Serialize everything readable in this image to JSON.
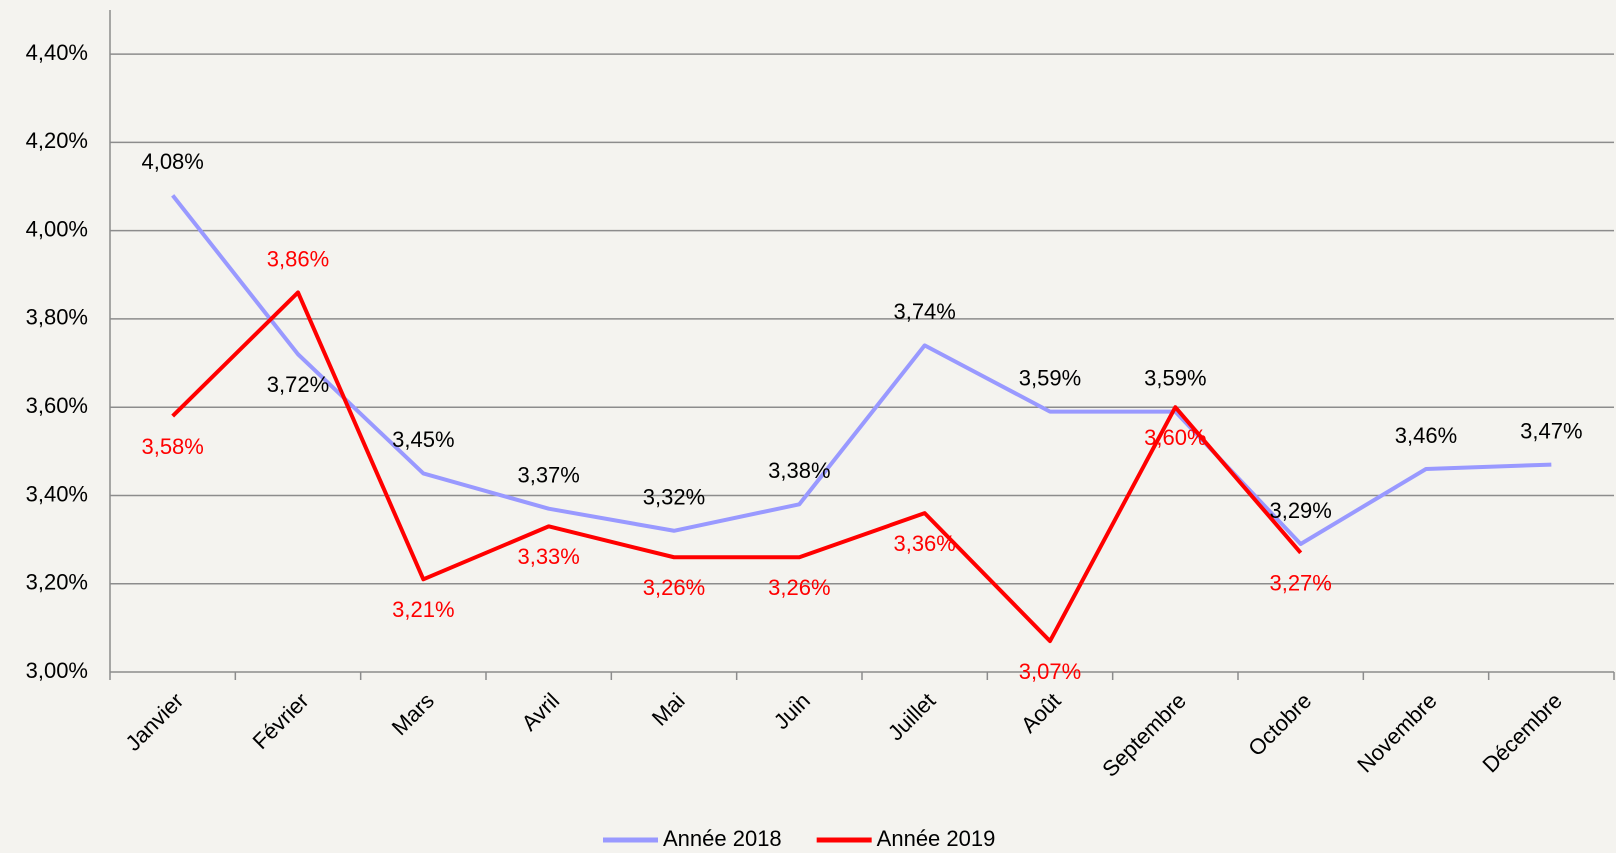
{
  "chart_data": {
    "type": "line",
    "categories": [
      "Janvier",
      "Février",
      "Mars",
      "Avril",
      "Mai",
      "Juin",
      "Juillet",
      "Août",
      "Septembre",
      "Octobre",
      "Novembre",
      "Décembre"
    ],
    "series": [
      {
        "name": "Année 2018",
        "color": "#9999ff",
        "values": [
          4.08,
          3.72,
          3.45,
          3.37,
          3.32,
          3.38,
          3.74,
          3.59,
          3.59,
          3.29,
          3.46,
          3.47
        ],
        "value_labels": [
          "4,08%",
          "3,72%",
          "3,45%",
          "3,37%",
          "3,32%",
          "3,38%",
          "3,74%",
          "3,59%",
          "3,59%",
          "3,29%",
          "3,46%",
          "3,47%"
        ]
      },
      {
        "name": "Année 2019",
        "color": "#ff0000",
        "values": [
          3.58,
          3.86,
          3.21,
          3.33,
          3.26,
          3.26,
          3.36,
          3.07,
          3.6,
          3.27,
          null,
          null
        ],
        "value_labels": [
          "3,58%",
          "3,86%",
          "3,21%",
          "3,33%",
          "3,26%",
          "3,26%",
          "3,36%",
          "3,07%",
          "3,60%",
          "3,27%",
          null,
          null
        ]
      }
    ],
    "ylim": [
      3.0,
      4.5
    ],
    "yticks": [
      {
        "value": 3.0,
        "label": "3,00%"
      },
      {
        "value": 3.2,
        "label": "3,20%"
      },
      {
        "value": 3.4,
        "label": "3,40%"
      },
      {
        "value": 3.6,
        "label": "3,60%"
      },
      {
        "value": 3.8,
        "label": "3,80%"
      },
      {
        "value": 4.0,
        "label": "4,00%"
      },
      {
        "value": 4.2,
        "label": "4,20%"
      },
      {
        "value": 4.4,
        "label": "4,40%"
      }
    ],
    "grid": true,
    "legend": "bottom"
  }
}
